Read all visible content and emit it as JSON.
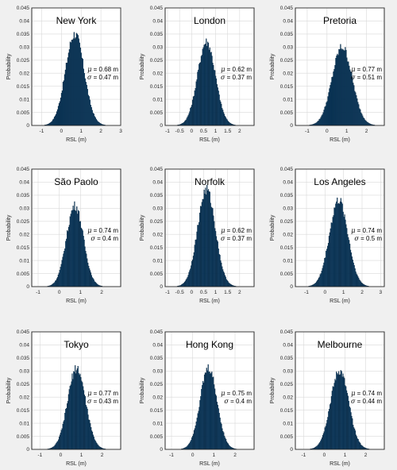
{
  "chart_data": [
    {
      "type": "bar",
      "title": "New York",
      "xlabel": "RSL (m)",
      "ylabel": "Probability",
      "xlim": [
        -1.5,
        3
      ],
      "ylim": [
        0,
        0.045
      ],
      "xticks": [
        -1,
        0,
        1,
        2,
        3
      ],
      "xticklabels": [
        "-1",
        "0",
        "1",
        "2",
        "3"
      ],
      "yticks": [
        0,
        0.005,
        0.01,
        0.015,
        0.02,
        0.025,
        0.03,
        0.035,
        0.04,
        0.045
      ],
      "yticklabels": [
        "0",
        "0.005",
        "0.01",
        "0.015",
        "0.02",
        "0.025",
        "0.03",
        "0.035",
        "0.04",
        "0.045"
      ],
      "mu": 0.68,
      "sigma": 0.47,
      "peak": 0.035,
      "bin_width": 0.04,
      "mu_text": "μ = 0.68 m",
      "sigma_text": "σ = 0.47 m",
      "grid": true
    },
    {
      "type": "bar",
      "title": "London",
      "xlabel": "RSL (m)",
      "ylabel": "Probability",
      "xlim": [
        -1.1,
        2.6
      ],
      "ylim": [
        0,
        0.045
      ],
      "xticks": [
        -1,
        -0.5,
        0,
        0.5,
        1,
        1.5,
        2
      ],
      "xticklabels": [
        "-1",
        "-0.5",
        "0",
        "0.5",
        "1",
        "1.5",
        "2"
      ],
      "yticks": [
        0,
        0.005,
        0.01,
        0.015,
        0.02,
        0.025,
        0.03,
        0.035,
        0.04,
        0.045
      ],
      "yticklabels": [
        "0",
        "0.005",
        "0.01",
        "0.015",
        "0.02",
        "0.025",
        "0.03",
        "0.035",
        "0.04",
        "0.045"
      ],
      "mu": 0.62,
      "sigma": 0.37,
      "peak": 0.032,
      "bin_width": 0.03,
      "mu_text": "μ = 0.62 m",
      "sigma_text": "σ = 0.37 m",
      "grid": true
    },
    {
      "type": "bar",
      "title": "Pretoria",
      "xlabel": "RSL (m)",
      "ylabel": "Probability",
      "xlim": [
        -1.6,
        2.9
      ],
      "ylim": [
        0,
        0.045
      ],
      "xticks": [
        -1,
        0,
        1,
        2
      ],
      "xticklabels": [
        "-1",
        "0",
        "1",
        "2"
      ],
      "yticks": [
        0,
        0.005,
        0.01,
        0.015,
        0.02,
        0.025,
        0.03,
        0.035,
        0.04,
        0.045
      ],
      "yticklabels": [
        "0",
        "0.005",
        "0.01",
        "0.015",
        "0.02",
        "0.025",
        "0.03",
        "0.035",
        "0.04",
        "0.045"
      ],
      "mu": 0.77,
      "sigma": 0.51,
      "peak": 0.03,
      "bin_width": 0.04,
      "mu_text": "μ = 0.77 m",
      "sigma_text": "σ = 0.51 m",
      "grid": true
    },
    {
      "type": "bar",
      "title": "São Paolo",
      "xlabel": "RSL (m)",
      "ylabel": "Probability",
      "xlim": [
        -1.3,
        2.9
      ],
      "ylim": [
        0,
        0.045
      ],
      "xticks": [
        -1,
        0,
        1,
        2
      ],
      "xticklabels": [
        "-1",
        "0",
        "1",
        "2"
      ],
      "yticks": [
        0,
        0.005,
        0.01,
        0.015,
        0.02,
        0.025,
        0.03,
        0.035,
        0.04,
        0.045
      ],
      "yticklabels": [
        "0",
        "0.005",
        "0.01",
        "0.015",
        "0.02",
        "0.025",
        "0.03",
        "0.035",
        "0.04",
        "0.045"
      ],
      "mu": 0.74,
      "sigma": 0.4,
      "peak": 0.031,
      "bin_width": 0.035,
      "mu_text": "μ = 0.74 m",
      "sigma_text": "σ = 0.4 m",
      "grid": true
    },
    {
      "type": "bar",
      "title": "Norfolk",
      "xlabel": "RSL (m)",
      "ylabel": "Probability",
      "xlim": [
        -1.1,
        2.6
      ],
      "ylim": [
        0,
        0.045
      ],
      "xticks": [
        -1,
        -0.5,
        0,
        0.5,
        1,
        1.5,
        2
      ],
      "xticklabels": [
        "-1",
        "-0.5",
        "0",
        "0.5",
        "1",
        "1.5",
        "2"
      ],
      "yticks": [
        0,
        0.005,
        0.01,
        0.015,
        0.02,
        0.025,
        0.03,
        0.035,
        0.04,
        0.045
      ],
      "yticklabels": [
        "0",
        "0.005",
        "0.01",
        "0.015",
        "0.02",
        "0.025",
        "0.03",
        "0.035",
        "0.04",
        "0.045"
      ],
      "mu": 0.62,
      "sigma": 0.37,
      "peak": 0.037,
      "bin_width": 0.03,
      "mu_text": "μ = 0.62 m",
      "sigma_text": "σ = 0.37 m",
      "grid": true
    },
    {
      "type": "bar",
      "title": "Los Angeles",
      "xlabel": "RSL (m)",
      "ylabel": "Probability",
      "xlim": [
        -1.6,
        3.2
      ],
      "ylim": [
        0,
        0.045
      ],
      "xticks": [
        -1,
        0,
        1,
        2,
        3
      ],
      "xticklabels": [
        "-1",
        "0",
        "1",
        "2",
        "3"
      ],
      "yticks": [
        0,
        0.005,
        0.01,
        0.015,
        0.02,
        0.025,
        0.03,
        0.035,
        0.04,
        0.045
      ],
      "yticklabels": [
        "0",
        "0.005",
        "0.01",
        "0.015",
        "0.02",
        "0.025",
        "0.03",
        "0.035",
        "0.04",
        "0.045"
      ],
      "mu": 0.74,
      "sigma": 0.5,
      "peak": 0.033,
      "bin_width": 0.04,
      "mu_text": "μ = 0.74 m",
      "sigma_text": "σ = 0.5 m",
      "grid": true
    },
    {
      "type": "bar",
      "title": "Tokyo",
      "xlabel": "RSL (m)",
      "ylabel": "Probability",
      "xlim": [
        -1.4,
        2.9
      ],
      "ylim": [
        0,
        0.045
      ],
      "xticks": [
        -1,
        0,
        1,
        2
      ],
      "xticklabels": [
        "-1",
        "0",
        "1",
        "2"
      ],
      "yticks": [
        0,
        0.005,
        0.01,
        0.015,
        0.02,
        0.025,
        0.03,
        0.035,
        0.04,
        0.045
      ],
      "yticklabels": [
        "0",
        "0.005",
        "0.01",
        "0.015",
        "0.02",
        "0.025",
        "0.03",
        "0.035",
        "0.04",
        "0.045"
      ],
      "mu": 0.77,
      "sigma": 0.43,
      "peak": 0.031,
      "bin_width": 0.035,
      "mu_text": "μ = 0.77 m",
      "sigma_text": "σ = 0.43 m",
      "grid": true
    },
    {
      "type": "bar",
      "title": "Hong Kong",
      "xlabel": "RSL (m)",
      "ylabel": "Probability",
      "xlim": [
        -1.3,
        2.9
      ],
      "ylim": [
        0,
        0.045
      ],
      "xticks": [
        -1,
        0,
        1,
        2
      ],
      "xticklabels": [
        "-1",
        "0",
        "1",
        "2"
      ],
      "yticks": [
        0,
        0.005,
        0.01,
        0.015,
        0.02,
        0.025,
        0.03,
        0.035,
        0.04,
        0.045
      ],
      "yticklabels": [
        "0",
        "0.005",
        "0.01",
        "0.015",
        "0.02",
        "0.025",
        "0.03",
        "0.035",
        "0.04",
        "0.045"
      ],
      "mu": 0.75,
      "sigma": 0.4,
      "peak": 0.031,
      "bin_width": 0.035,
      "mu_text": "μ = 0.75 m",
      "sigma_text": "σ = 0.4 m",
      "grid": true
    },
    {
      "type": "bar",
      "title": "Melbourne",
      "xlabel": "RSL (m)",
      "ylabel": "Probability",
      "xlim": [
        -1.4,
        2.9
      ],
      "ylim": [
        0,
        0.045
      ],
      "xticks": [
        -1,
        0,
        1,
        2
      ],
      "xticklabels": [
        "-1",
        "0",
        "1",
        "2"
      ],
      "yticks": [
        0,
        0.005,
        0.01,
        0.015,
        0.02,
        0.025,
        0.03,
        0.035,
        0.04,
        0.045
      ],
      "yticklabels": [
        "0",
        "0.005",
        "0.01",
        "0.015",
        "0.02",
        "0.025",
        "0.03",
        "0.035",
        "0.04",
        "0.045"
      ],
      "mu": 0.74,
      "sigma": 0.44,
      "peak": 0.03,
      "bin_width": 0.035,
      "mu_text": "μ = 0.74 m",
      "sigma_text": "σ = 0.44 m",
      "grid": true
    }
  ]
}
